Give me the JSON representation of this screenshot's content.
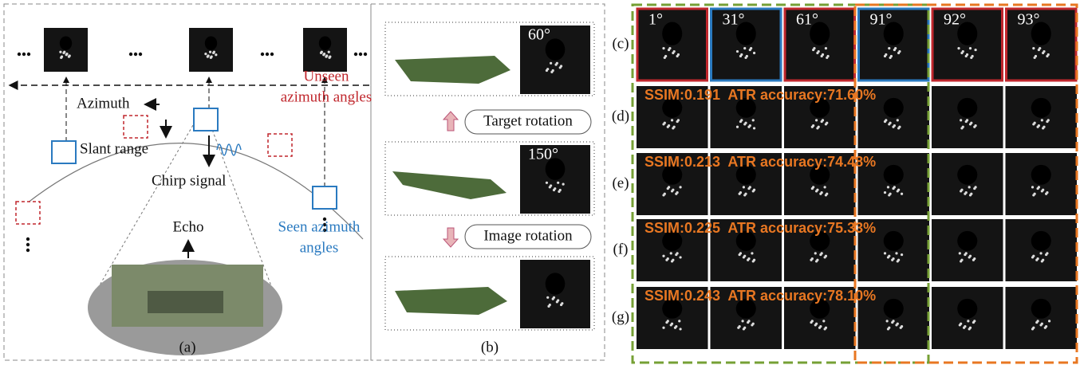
{
  "panel_a": {
    "azimuth": "Azimuth",
    "slant_range": "Slant range",
    "chirp_signal": "Chirp signal",
    "echo": "Echo",
    "unseen": [
      "Unseen",
      "azimuth angles"
    ],
    "seen": [
      "Seen azimuth",
      "angles"
    ],
    "label": "(a)"
  },
  "panel_b": {
    "angles": [
      "60°",
      "150°"
    ],
    "target_rotation": "Target rotation",
    "image_rotation": "Image rotation",
    "label": "(b)"
  },
  "panel_c": {
    "angles": [
      "1°",
      "31°",
      "61°",
      "91°",
      "92°",
      "93°"
    ],
    "row_labels": [
      "(c)",
      "(d)",
      "(e)",
      "(f)",
      "(g)"
    ],
    "metrics": [
      "SSIM:0.191  ATR accuracy:71.60%",
      "SSIM:0.213  ATR accuracy:74.48%",
      "SSIM:0.225  ATR accuracy:75.33%",
      "SSIM:0.243  ATR accuracy:78.10%"
    ]
  }
}
